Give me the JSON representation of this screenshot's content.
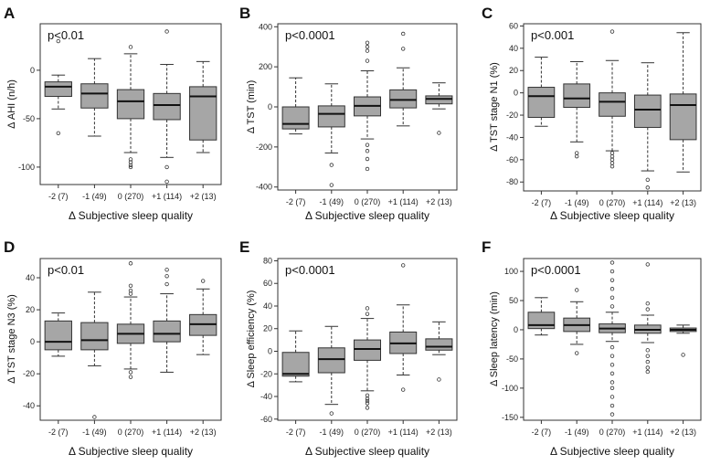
{
  "chart_data": [
    {
      "letter": "A",
      "type": "box",
      "p_label": "p<0.01",
      "ylabel": "Δ AHI (n/h)",
      "xlabel": "Δ Subjective sleep quality",
      "ylim": [
        -118,
        48
      ],
      "yticks": [
        0,
        -50,
        -100
      ],
      "categories": [
        "-2 (7)",
        "-1 (49)",
        "0 (270)",
        "+1 (114)",
        "+2 (13)"
      ],
      "boxes": [
        {
          "min": -40,
          "q1": -27,
          "median": -17,
          "q3": -12,
          "max": -5,
          "outliers": [
            -65,
            30
          ]
        },
        {
          "min": -68,
          "q1": -39,
          "median": -24,
          "q3": -14,
          "max": 12,
          "outliers": []
        },
        {
          "min": -85,
          "q1": -50,
          "median": -32,
          "q3": -20,
          "max": 17,
          "outliers": [
            -92,
            -95,
            -98,
            -100,
            24
          ]
        },
        {
          "min": -90,
          "q1": -51,
          "median": -36,
          "q3": -24,
          "max": 6,
          "outliers": [
            -100,
            -115,
            40
          ]
        },
        {
          "min": -85,
          "q1": -72,
          "median": -27,
          "q3": -17,
          "max": 9,
          "outliers": []
        }
      ]
    },
    {
      "letter": "B",
      "type": "box",
      "p_label": "p<0.0001",
      "ylabel": "Δ TST (min)",
      "xlabel": "Δ Subjective sleep quality",
      "ylim": [
        -415,
        415
      ],
      "yticks": [
        400,
        200,
        0,
        -200,
        -400
      ],
      "categories": [
        "-2 (7)",
        "-1 (49)",
        "0 (270)",
        "+1 (114)",
        "+2 (13)"
      ],
      "boxes": [
        {
          "min": -135,
          "q1": -110,
          "median": -85,
          "q3": 0,
          "max": 145,
          "outliers": []
        },
        {
          "min": -230,
          "q1": -100,
          "median": -35,
          "q3": 5,
          "max": 115,
          "outliers": [
            -290,
            -390
          ]
        },
        {
          "min": -160,
          "q1": -45,
          "median": 5,
          "q3": 50,
          "max": 180,
          "outliers": [
            -190,
            -220,
            -260,
            -310,
            230,
            280,
            300,
            320
          ]
        },
        {
          "min": -95,
          "q1": -5,
          "median": 35,
          "q3": 85,
          "max": 195,
          "outliers": [
            290,
            365
          ]
        },
        {
          "min": -10,
          "q1": 15,
          "median": 40,
          "q3": 55,
          "max": 120,
          "outliers": [
            -130
          ]
        }
      ]
    },
    {
      "letter": "C",
      "type": "box",
      "p_label": "p<0.001",
      "ylabel": "Δ TST stage N1 (%)",
      "xlabel": "Δ Subjective sleep quality",
      "ylim": [
        -88,
        62
      ],
      "yticks": [
        60,
        40,
        20,
        0,
        -20,
        -40,
        -60,
        -80
      ],
      "categories": [
        "-2 (7)",
        "-1 (49)",
        "0 (270)",
        "+1 (114)",
        "+2 (13)"
      ],
      "boxes": [
        {
          "min": -30,
          "q1": -22,
          "median": -3,
          "q3": 5,
          "max": 32,
          "outliers": []
        },
        {
          "min": -44,
          "q1": -13,
          "median": -5,
          "q3": 8,
          "max": 28,
          "outliers": [
            -54,
            -57
          ]
        },
        {
          "min": -52,
          "q1": -21,
          "median": -8,
          "q3": 0,
          "max": 29,
          "outliers": [
            -54,
            -57,
            -60,
            -63,
            -66,
            55
          ]
        },
        {
          "min": -70,
          "q1": -31,
          "median": -15,
          "q3": -2,
          "max": 27,
          "outliers": [
            -78,
            -85
          ]
        },
        {
          "min": -71,
          "q1": -42,
          "median": -11,
          "q3": -1,
          "max": 54,
          "outliers": []
        }
      ]
    },
    {
      "letter": "D",
      "type": "box",
      "p_label": "p<0.01",
      "ylabel": "Δ TST stage N3 (%)",
      "xlabel": "Δ Subjective sleep quality",
      "ylim": [
        -49,
        52
      ],
      "yticks": [
        40,
        20,
        0,
        -20,
        -40
      ],
      "categories": [
        "-2 (7)",
        "-1 (49)",
        "0 (270)",
        "+1 (114)",
        "+2 (13)"
      ],
      "boxes": [
        {
          "min": -9,
          "q1": -5,
          "median": 0,
          "q3": 13,
          "max": 18,
          "outliers": []
        },
        {
          "min": -15,
          "q1": -5,
          "median": 1,
          "q3": 12,
          "max": 31,
          "outliers": [
            -47
          ]
        },
        {
          "min": -17,
          "q1": -1,
          "median": 5,
          "q3": 11,
          "max": 28,
          "outliers": [
            -19,
            -22,
            30,
            32,
            35,
            49
          ]
        },
        {
          "min": -19,
          "q1": 0,
          "median": 5,
          "q3": 13,
          "max": 30,
          "outliers": [
            36,
            41,
            45
          ]
        },
        {
          "min": -8,
          "q1": 4,
          "median": 11,
          "q3": 17,
          "max": 33,
          "outliers": [
            38
          ]
        }
      ]
    },
    {
      "letter": "E",
      "type": "box",
      "p_label": "p<0.0001",
      "ylabel": "Δ Sleep efficiency (%)",
      "xlabel": "Δ Subjective sleep quality",
      "ylim": [
        -61,
        82
      ],
      "yticks": [
        80,
        60,
        40,
        20,
        0,
        -20,
        -40,
        -60
      ],
      "categories": [
        "-2 (7)",
        "-1 (49)",
        "0 (270)",
        "+1 (114)",
        "+2 (13)"
      ],
      "boxes": [
        {
          "min": -27,
          "q1": -22,
          "median": -20,
          "q3": -1,
          "max": 18,
          "outliers": []
        },
        {
          "min": -47,
          "q1": -19,
          "median": -7,
          "q3": 3,
          "max": 22,
          "outliers": [
            -55
          ]
        },
        {
          "min": -35,
          "q1": -8,
          "median": 2,
          "q3": 10,
          "max": 29,
          "outliers": [
            -39,
            -42,
            -44,
            -46,
            -50,
            33,
            38
          ]
        },
        {
          "min": -21,
          "q1": -2,
          "median": 7,
          "q3": 17,
          "max": 41,
          "outliers": [
            -34,
            76
          ]
        },
        {
          "min": -3,
          "q1": 1,
          "median": 4,
          "q3": 11,
          "max": 26,
          "outliers": [
            -25
          ]
        }
      ]
    },
    {
      "letter": "F",
      "type": "box",
      "p_label": "p<0.0001",
      "ylabel": "Δ Sleep latency (min)",
      "xlabel": "Δ Subjective sleep quality",
      "ylim": [
        -155,
        122
      ],
      "yticks": [
        100,
        50,
        0,
        -50,
        -100,
        -150
      ],
      "categories": [
        "-2 (7)",
        "-1 (49)",
        "0 (270)",
        "+1 (114)",
        "+2 (13)"
      ],
      "boxes": [
        {
          "min": -9,
          "q1": 2,
          "median": 8,
          "q3": 30,
          "max": 55,
          "outliers": []
        },
        {
          "min": -25,
          "q1": -3,
          "median": 8,
          "q3": 20,
          "max": 48,
          "outliers": [
            -40,
            68
          ]
        },
        {
          "min": -20,
          "q1": -5,
          "median": 2,
          "q3": 10,
          "max": 30,
          "outliers": [
            -30,
            -45,
            -60,
            -75,
            -90,
            -100,
            -115,
            -130,
            -145,
            40,
            55,
            70,
            85,
            100,
            115
          ]
        },
        {
          "min": -22,
          "q1": -6,
          "median": 0,
          "q3": 8,
          "max": 25,
          "outliers": [
            -35,
            -45,
            -55,
            -65,
            -72,
            35,
            45,
            112
          ]
        },
        {
          "min": -6,
          "q1": -3,
          "median": 0,
          "q3": 3,
          "max": 8,
          "outliers": [
            -43
          ]
        }
      ]
    }
  ]
}
